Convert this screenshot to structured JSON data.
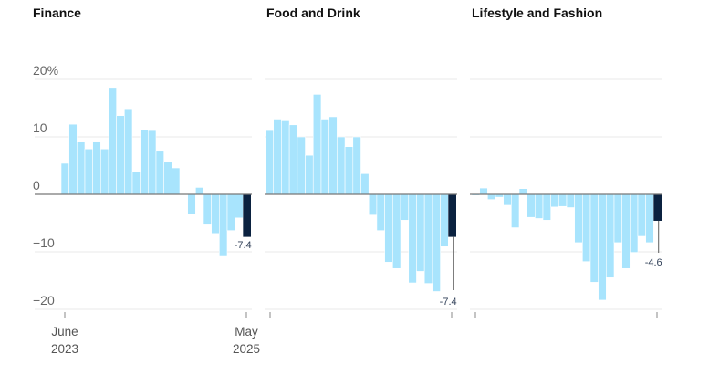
{
  "chart_data": [
    {
      "type": "bar",
      "title": "Finance",
      "x_start": "June 2023",
      "x_end": "May 2025",
      "values": [
        5.4,
        12.2,
        9.1,
        7.9,
        9.1,
        7.9,
        18.6,
        13.7,
        14.9,
        3.9,
        11.2,
        11.1,
        7.5,
        5.6,
        4.6,
        -0.1,
        -3.4,
        1.2,
        -5.3,
        -6.8,
        -10.8,
        -6.3,
        -4.1,
        -7.4
      ],
      "last_label": "-7.4",
      "ylim": [
        -20,
        20
      ],
      "yticks": [
        "20%",
        "10",
        "0",
        "−10",
        "−20"
      ],
      "xticks": [
        [
          "June",
          "2023"
        ],
        [
          "May",
          "2025"
        ]
      ]
    },
    {
      "type": "bar",
      "title": "Food and Drink",
      "values": [
        11.1,
        13.1,
        12.8,
        12.1,
        10.0,
        6.8,
        17.4,
        13.1,
        13.5,
        10.0,
        8.3,
        10.0,
        3.6,
        -3.6,
        -6.3,
        -11.8,
        -12.9,
        -4.5,
        -15.4,
        -13.4,
        -15.5,
        -16.9,
        -9.1,
        -7.4
      ],
      "last_label": "-7.4",
      "ylim": [
        -20,
        20
      ]
    },
    {
      "type": "bar",
      "title": "Lifestyle and Fashion",
      "values": [
        -0.2,
        1.1,
        -0.9,
        -0.5,
        -1.9,
        -5.8,
        1.0,
        -4.0,
        -4.2,
        -4.5,
        -2.2,
        -2.1,
        -2.3,
        -8.4,
        -11.7,
        -15.3,
        -18.4,
        -14.5,
        -8.4,
        -12.9,
        -10.1,
        -7.3,
        -8.4,
        -4.6
      ],
      "last_label": "-4.6",
      "ylim": [
        -20,
        20
      ]
    }
  ],
  "colors": {
    "bar": "#a8e4fd",
    "last_bar": "#0b2240",
    "grid": "#e8e8e8",
    "zero": "#777777"
  }
}
